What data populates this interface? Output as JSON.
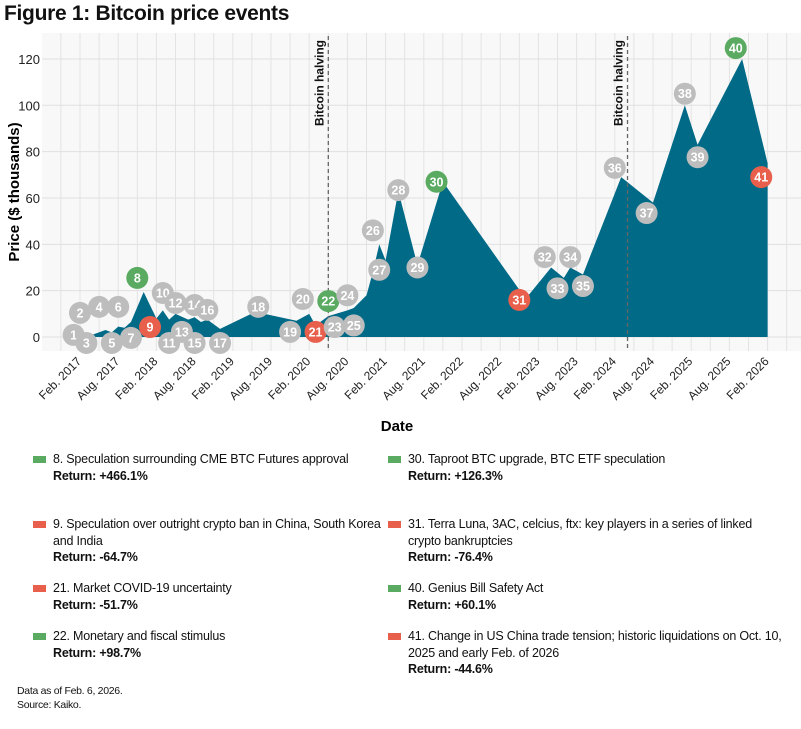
{
  "title": "Figure 1: Bitcoin price events",
  "chart_data": {
    "type": "area",
    "title": "Figure 1: Bitcoin price events",
    "xlabel": "Date",
    "ylabel": "Price ($ thousands)",
    "ylim": [
      -5,
      128
    ],
    "yticks": [
      0,
      20,
      40,
      60,
      80,
      100,
      120
    ],
    "xticks": [
      "Feb. 2017",
      "Aug. 2017",
      "Feb. 2018",
      "Aug. 2018",
      "Feb. 2019",
      "Aug. 2019",
      "Feb. 2020",
      "Aug. 2020",
      "Feb. 2021",
      "Aug. 2021",
      "Feb. 2022",
      "Aug. 2022",
      "Feb. 2023",
      "Aug. 2023",
      "Feb. 2024",
      "Aug. 2024",
      "Feb. 2025",
      "Aug. 2025",
      "Feb. 2026"
    ],
    "grid": true,
    "area_color": "#006a87",
    "series": [
      {
        "values": [
          [
            "2017-04",
            1
          ],
          [
            "2017-06",
            3
          ],
          [
            "2017-07",
            2
          ],
          [
            "2017-08",
            4.5
          ],
          [
            "2017-09",
            4
          ],
          [
            "2017-10",
            6.5
          ],
          [
            "2017-12",
            19.4
          ],
          [
            "2018-02",
            8
          ],
          [
            "2018-03",
            11.5
          ],
          [
            "2018-04",
            7.5
          ],
          [
            "2018-05",
            10
          ],
          [
            "2018-07",
            7.5
          ],
          [
            "2018-08",
            8.5
          ],
          [
            "2018-09",
            6.5
          ],
          [
            "2018-10",
            7.5
          ],
          [
            "2018-12",
            3.5
          ],
          [
            "2019-06",
            11.5
          ],
          [
            "2019-07",
            10
          ],
          [
            "2019-12",
            7
          ],
          [
            "2020-02",
            10
          ],
          [
            "2020-03",
            5
          ],
          [
            "2020-05",
            9
          ],
          [
            "2020-08",
            11.5
          ],
          [
            "2020-09",
            12.5
          ],
          [
            "2020-11",
            18
          ],
          [
            "2020-12",
            28
          ],
          [
            "2021-01",
            40
          ],
          [
            "2021-02",
            33
          ],
          [
            "2021-04",
            63
          ],
          [
            "2021-07",
            31
          ],
          [
            "2021-11",
            67
          ],
          [
            "2022-12",
            16.5
          ],
          [
            "2023-04",
            30
          ],
          [
            "2023-06",
            25.5
          ],
          [
            "2023-07",
            30
          ],
          [
            "2023-09",
            27
          ],
          [
            "2024-03",
            69
          ],
          [
            "2024-08",
            58
          ],
          [
            "2025-01",
            100
          ],
          [
            "2025-03",
            83
          ],
          [
            "2025-10",
            120
          ],
          [
            "2026-02",
            75
          ]
        ]
      }
    ],
    "halvings": [
      {
        "date": "2020-05",
        "label": "Bitcoin halving"
      },
      {
        "date": "2024-04",
        "label": "Bitcoin halving"
      }
    ],
    "status_colors": {
      "positive": "#5aab61",
      "negative": "#e8604c",
      "neutral": "#bdbdbd"
    },
    "events": [
      {
        "n": "1",
        "date": "2017-01",
        "price": 0.9,
        "status": "neutral"
      },
      {
        "n": "2",
        "date": "2017-02",
        "price": 10.4,
        "status": "neutral"
      },
      {
        "n": "3",
        "date": "2017-03",
        "price": -2.6,
        "status": "neutral"
      },
      {
        "n": "4",
        "date": "2017-05",
        "price": 13,
        "status": "neutral"
      },
      {
        "n": "5",
        "date": "2017-07",
        "price": -2.6,
        "status": "neutral"
      },
      {
        "n": "6",
        "date": "2017-08",
        "price": 13,
        "status": "neutral"
      },
      {
        "n": "7",
        "date": "2017-10",
        "price": -0.4,
        "status": "neutral"
      },
      {
        "n": "8",
        "date": "2017-11",
        "price": 25.5,
        "status": "positive"
      },
      {
        "n": "9",
        "date": "2018-01",
        "price": 4.3,
        "status": "negative"
      },
      {
        "n": "10",
        "date": "2018-03",
        "price": 19,
        "status": "neutral"
      },
      {
        "n": "11",
        "date": "2018-04",
        "price": -2.6,
        "status": "neutral"
      },
      {
        "n": "12",
        "date": "2018-05",
        "price": 14.7,
        "status": "neutral"
      },
      {
        "n": "13",
        "date": "2018-06",
        "price": 2.2,
        "status": "neutral"
      },
      {
        "n": "14",
        "date": "2018-08",
        "price": 13.8,
        "status": "neutral"
      },
      {
        "n": "15",
        "date": "2018-08",
        "price": -2.6,
        "status": "neutral"
      },
      {
        "n": "16",
        "date": "2018-10",
        "price": 11.7,
        "status": "neutral"
      },
      {
        "n": "17",
        "date": "2018-12",
        "price": -2.6,
        "status": "neutral"
      },
      {
        "n": "18",
        "date": "2019-06",
        "price": 13,
        "status": "neutral"
      },
      {
        "n": "19",
        "date": "2019-11",
        "price": 2.2,
        "status": "neutral"
      },
      {
        "n": "20",
        "date": "2020-01",
        "price": 16.4,
        "status": "neutral"
      },
      {
        "n": "21",
        "date": "2020-03",
        "price": 2.2,
        "status": "negative"
      },
      {
        "n": "22",
        "date": "2020-05",
        "price": 15.5,
        "status": "positive"
      },
      {
        "n": "23",
        "date": "2020-06",
        "price": 4.3,
        "status": "neutral"
      },
      {
        "n": "24",
        "date": "2020-08",
        "price": 18,
        "status": "neutral"
      },
      {
        "n": "25",
        "date": "2020-09",
        "price": 5,
        "status": "neutral"
      },
      {
        "n": "26",
        "date": "2020-12",
        "price": 46,
        "status": "neutral"
      },
      {
        "n": "27",
        "date": "2021-01",
        "price": 29,
        "status": "neutral"
      },
      {
        "n": "28",
        "date": "2021-04",
        "price": 63.4,
        "status": "neutral"
      },
      {
        "n": "29",
        "date": "2021-07",
        "price": 30,
        "status": "neutral"
      },
      {
        "n": "30",
        "date": "2021-10",
        "price": 67,
        "status": "positive"
      },
      {
        "n": "31",
        "date": "2022-11",
        "price": 16,
        "status": "negative"
      },
      {
        "n": "32",
        "date": "2023-03",
        "price": 34.5,
        "status": "neutral"
      },
      {
        "n": "33",
        "date": "2023-05",
        "price": 21,
        "status": "neutral"
      },
      {
        "n": "34",
        "date": "2023-07",
        "price": 34.5,
        "status": "neutral"
      },
      {
        "n": "35",
        "date": "2023-09",
        "price": 22,
        "status": "neutral"
      },
      {
        "n": "36",
        "date": "2024-02",
        "price": 73,
        "status": "neutral"
      },
      {
        "n": "37",
        "date": "2024-07",
        "price": 53.5,
        "status": "neutral"
      },
      {
        "n": "38",
        "date": "2025-01",
        "price": 105,
        "status": "neutral"
      },
      {
        "n": "39",
        "date": "2025-03",
        "price": 77.6,
        "status": "neutral"
      },
      {
        "n": "40",
        "date": "2025-09",
        "price": 124.7,
        "status": "positive"
      },
      {
        "n": "41",
        "date": "2026-01",
        "price": 69,
        "status": "negative"
      }
    ]
  },
  "legend": [
    {
      "text": "8. Speculation surrounding CME BTC Futures approval",
      "return": "Return: +466.1%",
      "status": "positive"
    },
    {
      "text": "30. Taproot BTC upgrade, BTC ETF speculation",
      "return": "Return: +126.3%",
      "status": "positive"
    },
    {
      "text": "9. Speculation over outright crypto ban in China, South Korea and India",
      "return": "Return: -64.7%",
      "status": "negative"
    },
    {
      "text": "31. Terra Luna, 3AC, celcius, ftx: key players in a series of linked crypto bankruptcies",
      "return": "Return: -76.4%",
      "status": "negative"
    },
    {
      "text": "21. Market COVID-19 uncertainty",
      "return": "Return: -51.7%",
      "status": "negative"
    },
    {
      "text": "40. Genius Bill Safety Act",
      "return": "Return: +60.1%",
      "status": "positive"
    },
    {
      "text": "22. Monetary and fiscal stimulus",
      "return": "Return: +98.7%",
      "status": "positive"
    },
    {
      "text": "41. Change in US China trade tension; historic liquidations on Oct. 10, 2025 and early Feb. of 2026",
      "return": "Return: -44.6%",
      "status": "negative"
    }
  ],
  "notes": {
    "data_as_of": "Data as of Feb. 6, 2026.",
    "source": "Source: Kaiko."
  }
}
